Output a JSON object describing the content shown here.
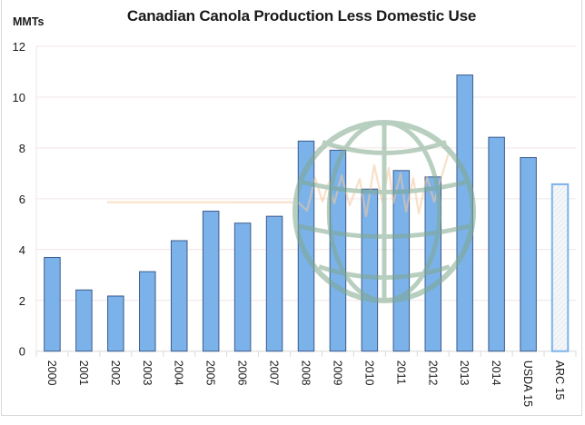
{
  "chart_data": {
    "type": "bar",
    "title": "Canadian Canola Production Less Domestic Use",
    "ylabel": "MMTs",
    "xlabel": "",
    "ylim": [
      0,
      12
    ],
    "yticks": [
      0,
      2,
      4,
      6,
      8,
      10,
      12
    ],
    "grid": true,
    "legend": "none",
    "categories": [
      "2000",
      "2001",
      "2002",
      "2003",
      "2004",
      "2005",
      "2006",
      "2007",
      "2008",
      "2009",
      "2010",
      "2011",
      "2012",
      "2013",
      "2014",
      "USDA 15",
      "ARC 15"
    ],
    "values": [
      3.69,
      2.41,
      2.17,
      3.13,
      4.35,
      5.51,
      5.04,
      5.31,
      8.27,
      7.91,
      6.38,
      7.11,
      6.86,
      10.87,
      8.42,
      7.62,
      6.57
    ],
    "bar_styles": [
      "solid",
      "solid",
      "solid",
      "solid",
      "solid",
      "solid",
      "solid",
      "solid",
      "solid",
      "solid",
      "solid",
      "solid",
      "solid",
      "solid",
      "solid",
      "solid",
      "hatched"
    ],
    "colors": {
      "bar_fill": "#7cb2ea",
      "bar_edge": "#3b5a8c",
      "projection_edge": "#7cb2ea",
      "projection_fill": "#eef3f8",
      "gridline": "#f3e4e4",
      "watermark_globe": "#7fa88e",
      "watermark_line": "#f5c89c"
    }
  }
}
